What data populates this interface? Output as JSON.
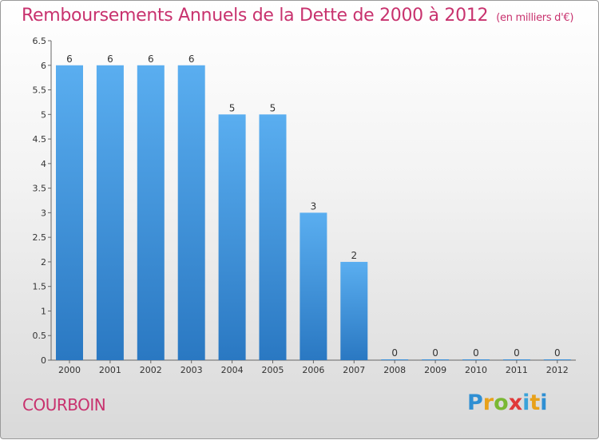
{
  "title": "Remboursements Annuels de la Dette de 2000 à 2012",
  "unit": "(en milliers d'€)",
  "commune": "COURBOIN",
  "logo": {
    "letters": [
      "P",
      "r",
      "o",
      "x",
      "i",
      "t",
      "i"
    ],
    "colors": [
      "#2f8fd3",
      "#e8a11a",
      "#7ab833",
      "#e03a3a",
      "#3aa3d9",
      "#e8a11a",
      "#2f8fd3"
    ]
  },
  "colors": {
    "bar_top": "#5aaef0",
    "bar_bottom": "#2a78c2",
    "accent": "#c8326e"
  },
  "chart_data": {
    "type": "bar",
    "categories": [
      "2000",
      "2001",
      "2002",
      "2003",
      "2004",
      "2005",
      "2006",
      "2007",
      "2008",
      "2009",
      "2010",
      "2011",
      "2012"
    ],
    "values": [
      6,
      6,
      6,
      6,
      5,
      5,
      3,
      2,
      0,
      0,
      0,
      0,
      0
    ],
    "data_labels": [
      "6",
      "6",
      "6",
      "6",
      "5",
      "5",
      "3",
      "2",
      "0",
      "0",
      "0",
      "0",
      "0"
    ],
    "yticks": [
      "0",
      "0.5",
      "1",
      "1.5",
      "2",
      "2.5",
      "3",
      "3.5",
      "4",
      "4.5",
      "5",
      "5.5",
      "6",
      "6.5"
    ],
    "ylim": [
      0,
      6.5
    ],
    "grid": false
  }
}
